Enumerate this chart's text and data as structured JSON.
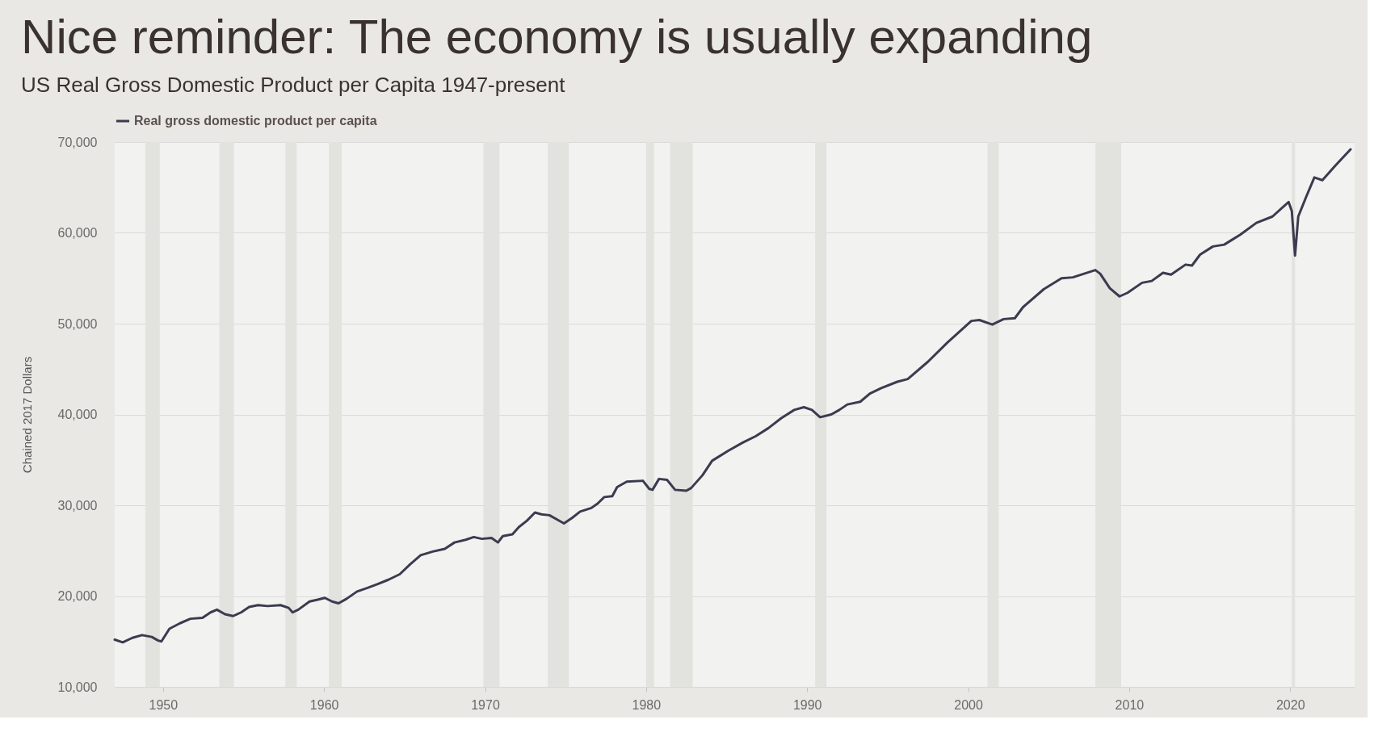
{
  "chart_data": {
    "type": "line",
    "title": "Nice reminder: The economy is usually expanding",
    "subtitle": "US Real Gross Domestic Product per Capita 1947-present",
    "ylabel": "Chained 2017 Dollars",
    "x": [
      1947.0,
      1947.5,
      1948.1,
      1948.7,
      1949.3,
      1949.7,
      1949.9,
      1950.4,
      1951.05,
      1951.7,
      1952.45,
      1952.95,
      1953.35,
      1953.85,
      1954.35,
      1954.85,
      1955.35,
      1955.9,
      1956.5,
      1957.3,
      1957.8,
      1958.05,
      1958.4,
      1959.1,
      1959.6,
      1960.05,
      1960.5,
      1960.9,
      1961.4,
      1962.05,
      1962.7,
      1963.3,
      1964.0,
      1964.7,
      1965.35,
      1966.0,
      1966.75,
      1967.5,
      1968.1,
      1968.8,
      1969.3,
      1969.8,
      1970.4,
      1970.8,
      1971.1,
      1971.7,
      1972.1,
      1972.6,
      1973.1,
      1973.5,
      1974.0,
      1974.5,
      1974.9,
      1975.4,
      1975.9,
      1976.6,
      1977.0,
      1977.4,
      1977.9,
      1978.2,
      1978.8,
      1979.8,
      1980.2,
      1980.4,
      1980.8,
      1981.3,
      1981.8,
      1982.5,
      1982.8,
      1983.5,
      1984.1,
      1985.1,
      1986.0,
      1986.8,
      1987.6,
      1988.4,
      1989.2,
      1989.8,
      1990.3,
      1990.8,
      1991.5,
      1992.0,
      1992.5,
      1993.3,
      1993.9,
      1994.6,
      1995.6,
      1996.25,
      1997.5,
      1998.7,
      1999.7,
      2000.2,
      2000.7,
      2001.5,
      2002.2,
      2002.9,
      2003.4,
      2004.7,
      2005.8,
      2006.5,
      2007.9,
      2008.2,
      2008.8,
      2009.4,
      2009.9,
      2010.8,
      2011.4,
      2012.1,
      2012.6,
      2013.5,
      2013.9,
      2014.4,
      2015.2,
      2015.9,
      2016.9,
      2017.9,
      2018.9,
      2019.9,
      2020.1,
      2020.3,
      2020.5,
      2021.0,
      2021.5,
      2022.0,
      2022.8,
      2023.75
    ],
    "series": [
      {
        "name": "Real gross domestic product per capita",
        "color": "#3b3b50",
        "values": [
          15200,
          14900,
          15400,
          15700,
          15500,
          15100,
          15000,
          16400,
          17000,
          17500,
          17600,
          18200,
          18500,
          18000,
          17800,
          18200,
          18800,
          19000,
          18900,
          19000,
          18700,
          18200,
          18500,
          19400,
          19600,
          19800,
          19400,
          19200,
          19700,
          20500,
          20900,
          21300,
          21800,
          22400,
          23500,
          24500,
          24900,
          25200,
          25900,
          26200,
          26500,
          26300,
          26400,
          25900,
          26600,
          26800,
          27600,
          28300,
          29200,
          29000,
          28900,
          28400,
          28000,
          28600,
          29300,
          29700,
          30200,
          30900,
          31000,
          32000,
          32600,
          32700,
          31800,
          31700,
          32900,
          32800,
          31700,
          31600,
          31900,
          33300,
          34900,
          36000,
          36900,
          37600,
          38500,
          39600,
          40500,
          40800,
          40500,
          39700,
          40000,
          40500,
          41100,
          41400,
          42300,
          42900,
          43600,
          43900,
          45800,
          47900,
          49500,
          50300,
          50400,
          49900,
          50500,
          50600,
          51800,
          53800,
          55000,
          55100,
          55900,
          55500,
          53900,
          53000,
          53400,
          54500,
          54700,
          55600,
          55400,
          56500,
          56400,
          57600,
          58500,
          58700,
          59800,
          61100,
          61800,
          63400,
          62400,
          57500,
          61800,
          64000,
          66100,
          65800,
          67400,
          69200
        ]
      }
    ],
    "xlim": [
      1947,
      2024
    ],
    "xticks": [
      1950,
      1960,
      1970,
      1980,
      1990,
      2000,
      2010,
      2020
    ],
    "ylim": [
      10000,
      70000
    ],
    "yticks": [
      {
        "value": 10000,
        "label": "10,000"
      },
      {
        "value": 20000,
        "label": "20,000"
      },
      {
        "value": 30000,
        "label": "30,000"
      },
      {
        "value": 40000,
        "label": "40,000"
      },
      {
        "value": 50000,
        "label": "50,000"
      },
      {
        "value": 60000,
        "label": "60,000"
      },
      {
        "value": 70000,
        "label": "70,000"
      }
    ],
    "bands": [
      {
        "axis": "x",
        "from": 1948.9,
        "to": 1949.8,
        "color": "#e2e2de"
      },
      {
        "axis": "x",
        "from": 1953.5,
        "to": 1954.4,
        "color": "#e2e2de"
      },
      {
        "axis": "x",
        "from": 1957.6,
        "to": 1958.3,
        "color": "#e2e2de"
      },
      {
        "axis": "x",
        "from": 1960.3,
        "to": 1961.1,
        "color": "#e2e2de"
      },
      {
        "axis": "x",
        "from": 1969.9,
        "to": 1970.9,
        "color": "#e2e2de"
      },
      {
        "axis": "x",
        "from": 1973.9,
        "to": 1975.2,
        "color": "#e2e2de"
      },
      {
        "axis": "x",
        "from": 1980.0,
        "to": 1980.5,
        "color": "#e2e2de"
      },
      {
        "axis": "x",
        "from": 1981.5,
        "to": 1982.9,
        "color": "#e2e2de"
      },
      {
        "axis": "x",
        "from": 1990.5,
        "to": 1991.2,
        "color": "#e2e2de"
      },
      {
        "axis": "x",
        "from": 2001.2,
        "to": 2001.9,
        "color": "#e2e2de"
      },
      {
        "axis": "x",
        "from": 2007.9,
        "to": 2009.5,
        "color": "#e2e2de"
      },
      {
        "axis": "x",
        "from": 2020.1,
        "to": 2020.3,
        "color": "#e2e2de"
      }
    ],
    "grid": "y",
    "legend": "top left"
  }
}
